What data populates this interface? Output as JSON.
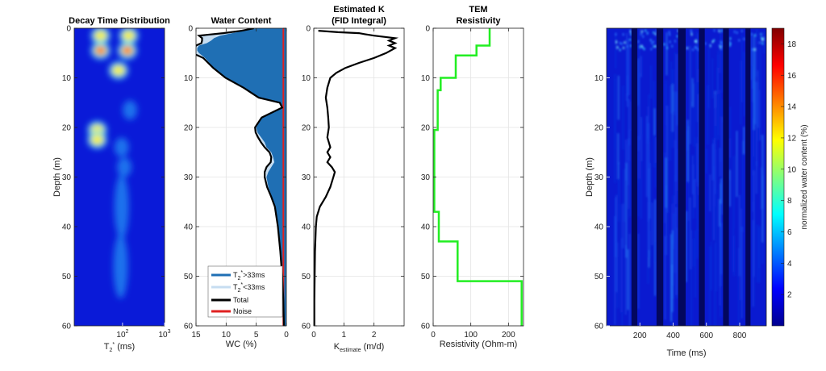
{
  "chart_data": [
    {
      "type": "heatmap",
      "title": "Decay Time Distribution",
      "xlabel": "T",
      "xlabel_sub": "2",
      "xlabel_sup": "*",
      "xlabel_unit": " (ms)",
      "ylabel": "Depth (m)",
      "xscale": "log",
      "ylim": [
        0,
        60
      ],
      "yticks": [
        "0",
        "10",
        "20",
        "30",
        "40",
        "50",
        "60"
      ],
      "xticks": [
        {
          "base": "10",
          "exp": "2"
        },
        {
          "base": "10",
          "exp": "3"
        }
      ],
      "hotspots": [
        {
          "depth": 1.5,
          "t2_ms": 30,
          "level": 0.8
        },
        {
          "depth": 4.5,
          "t2_ms": 30,
          "level": 1.0
        },
        {
          "depth": 1.5,
          "t2_ms": 140,
          "level": 0.7
        },
        {
          "depth": 4.5,
          "t2_ms": 130,
          "level": 1.0
        },
        {
          "depth": 8.5,
          "t2_ms": 80,
          "level": 0.85
        },
        {
          "depth": 16.5,
          "t2_ms": 150,
          "level": 0.4
        },
        {
          "depth": 20.5,
          "t2_ms": 25,
          "level": 0.7
        },
        {
          "depth": 22.5,
          "t2_ms": 25,
          "level": 0.75
        },
        {
          "depth": 24.0,
          "t2_ms": 95,
          "level": 0.35
        },
        {
          "depth": 28.0,
          "t2_ms": 110,
          "level": 0.45
        },
        {
          "depth": 36.0,
          "t2_ms": 95,
          "level": 0.45
        },
        {
          "depth": 48.0,
          "t2_ms": 90,
          "level": 0.4
        }
      ]
    },
    {
      "type": "area",
      "title": "Water Content",
      "xlabel": "WC (%)",
      "xlim": [
        15,
        0
      ],
      "ylim": [
        0,
        60
      ],
      "xticks": [
        "15",
        "10",
        "5",
        "0"
      ],
      "yticks": [
        "0",
        "10",
        "20",
        "30",
        "40",
        "50",
        "60"
      ],
      "legend_position": "bottom",
      "depth": [
        0,
        0.5,
        1,
        1.5,
        2,
        2.5,
        3,
        3.5,
        4,
        4.5,
        5,
        6,
        8,
        10,
        12,
        14,
        15,
        16,
        18,
        20,
        21,
        22,
        23,
        24,
        25,
        26,
        27,
        28,
        29,
        30,
        32,
        34,
        36,
        40,
        45,
        50,
        55,
        60
      ],
      "series": [
        {
          "name": "T2*>33ms",
          "label_sub": "2",
          "label_sup": "*",
          "label_rest": ">33ms",
          "color": "#1f6fb4",
          "values": [
            5.0,
            7.0,
            9.0,
            11.0,
            12.0,
            12.5,
            13.2,
            14.5,
            14.8,
            14.8,
            14.5,
            13.5,
            12.0,
            10.0,
            7.0,
            4.5,
            1.0,
            0.6,
            4.0,
            5.0,
            4.8,
            4.2,
            3.6,
            3.3,
            2.5,
            2.2,
            2.0,
            2.5,
            3.0,
            3.3,
            3.0,
            2.4,
            1.8,
            1.3,
            0.9,
            0.6,
            0.4,
            0.3
          ]
        },
        {
          "name": "T2*<33ms",
          "label_sub": "2",
          "label_sup": "*",
          "label_rest": "<33ms",
          "color": "#c6ddf1",
          "values": [
            0.4,
            0.4,
            1.5,
            3.5,
            2.0,
            1.5,
            0.9,
            0.5,
            0.4,
            0.8,
            1.1,
            0.3,
            0.15,
            0.1,
            0.1,
            0.1,
            0.1,
            0.1,
            0.1,
            0.2,
            0.3,
            0.5,
            0.6,
            0.3,
            0.3,
            0.3,
            0.6,
            0.8,
            0.6,
            0.3,
            0.2,
            0.1,
            0.1,
            0.1,
            0.1,
            0.1,
            0.1,
            0.1
          ]
        },
        {
          "name": "Total",
          "color": "#000000",
          "values": [
            5.4,
            7.4,
            10.5,
            14.5,
            14.0,
            14.0,
            14.1,
            15.0,
            15.2,
            15.6,
            15.6,
            13.8,
            12.15,
            10.1,
            7.1,
            4.6,
            1.1,
            0.7,
            4.1,
            5.2,
            5.1,
            4.7,
            4.2,
            3.6,
            2.8,
            2.5,
            2.6,
            3.3,
            3.6,
            3.6,
            3.2,
            2.5,
            1.9,
            1.4,
            1.0,
            0.7,
            0.5,
            0.4
          ]
        },
        {
          "name": "Noise",
          "color": "#e02020",
          "values": [
            0.5,
            0.5,
            0.5,
            0.5,
            0.5,
            0.5,
            0.5,
            0.5,
            0.5,
            0.5,
            0.5,
            0.5,
            0.5,
            0.5,
            0.5,
            0.5,
            0.5,
            0.5,
            0.5,
            0.5,
            0.5,
            0.5,
            0.5,
            0.5,
            0.5,
            0.5,
            0.5,
            0.5,
            0.5,
            0.5,
            0.5,
            0.5,
            0.5,
            0.5,
            0.5,
            0.5,
            0.5,
            0.5
          ]
        }
      ]
    },
    {
      "type": "line",
      "title": "Estimated K",
      "subtitle": "(FID Integral)",
      "xlabel": "K",
      "xlabel_sub": "estimate",
      "xlabel_unit": " (m/d)",
      "xlim": [
        0,
        3
      ],
      "ylim": [
        0,
        60
      ],
      "xticks": [
        "0",
        "1",
        "2"
      ],
      "yticks": [
        "0",
        "10",
        "20",
        "30",
        "40",
        "50",
        "60"
      ],
      "color": "#000000",
      "depth": [
        0.5,
        0.8,
        1.0,
        1.2,
        1.5,
        2,
        2.5,
        3,
        3.5,
        4,
        5,
        6,
        7,
        8,
        9,
        10,
        12,
        14,
        16,
        18,
        20,
        22,
        24,
        25,
        26,
        27,
        28,
        29,
        30,
        32,
        34,
        36,
        38,
        40,
        45,
        50,
        55,
        60
      ],
      "values": [
        0.15,
        0.8,
        1.5,
        1.7,
        2.0,
        2.7,
        2.5,
        2.7,
        2.5,
        2.7,
        2.4,
        2.0,
        1.5,
        1.05,
        0.75,
        0.55,
        0.45,
        0.4,
        0.45,
        0.48,
        0.5,
        0.45,
        0.55,
        0.45,
        0.55,
        0.45,
        0.6,
        0.7,
        0.65,
        0.55,
        0.4,
        0.2,
        0.1,
        0.07,
        0.04,
        0.03,
        0.02,
        0.02
      ]
    },
    {
      "type": "line",
      "title": "TEM",
      "subtitle": "Resistivity",
      "xlabel": "Resistivity (Ohm-m)",
      "xlim": [
        0,
        240
      ],
      "ylim": [
        0,
        60
      ],
      "xticks": [
        "0",
        "100",
        "200"
      ],
      "yticks": [
        "0",
        "10",
        "20",
        "30",
        "40",
        "50",
        "60"
      ],
      "color": "#22ee22",
      "steps": [
        {
          "from": 0,
          "to": 3.5,
          "value": 150
        },
        {
          "from": 3.5,
          "to": 5.5,
          "value": 115
        },
        {
          "from": 5.5,
          "to": 10,
          "value": 60
        },
        {
          "from": 10,
          "to": 12.5,
          "value": 20
        },
        {
          "from": 12.5,
          "to": 20.5,
          "value": 12
        },
        {
          "from": 20.5,
          "to": 37,
          "value": 3
        },
        {
          "from": 37,
          "to": 43,
          "value": 15
        },
        {
          "from": 43,
          "to": 51,
          "value": 65
        },
        {
          "from": 51,
          "to": 60,
          "value": 235
        }
      ]
    },
    {
      "type": "heatmap",
      "xlabel": "Time (ms)",
      "ylabel": "Depth (m)",
      "xlim": [
        0,
        960
      ],
      "ylim": [
        0,
        60
      ],
      "xticks": [
        "200",
        "400",
        "600",
        "800"
      ],
      "yticks": [
        "10",
        "20",
        "30",
        "40",
        "50",
        "60"
      ],
      "colorbar_label": "normalized water content (%)",
      "colorbar_range": [
        0,
        19
      ],
      "colorbar_ticks": [
        "2",
        "4",
        "6",
        "8",
        "10",
        "12",
        "14",
        "16",
        "18"
      ],
      "dead_time_windows_ms": [
        [
          150,
          185
        ],
        [
          300,
          340
        ],
        [
          430,
          475
        ],
        [
          555,
          590
        ],
        [
          700,
          735
        ],
        [
          835,
          865
        ]
      ]
    }
  ]
}
